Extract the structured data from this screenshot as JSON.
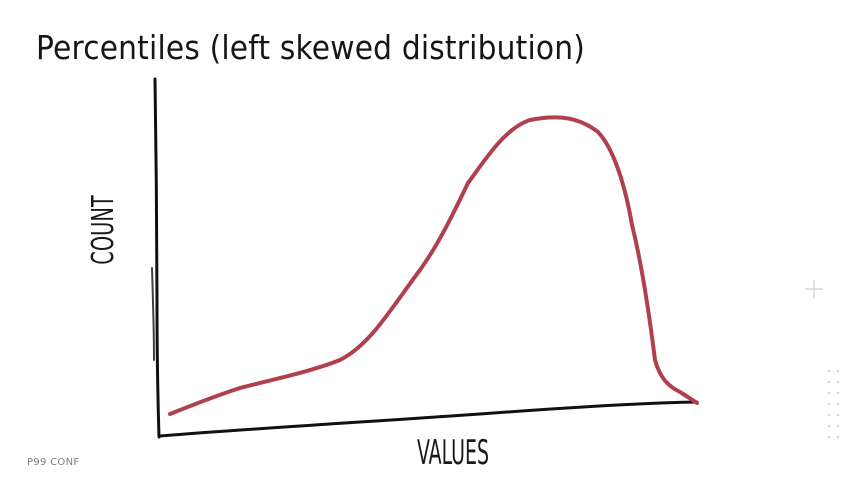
{
  "slide": {
    "title": "Percentiles (left skewed distribution)",
    "footer": "P99 CONF"
  },
  "diagram": {
    "y_axis_label": "COUNT",
    "x_axis_label": "VALUES",
    "curve_color": "#b0404f",
    "axis_color": "#111111",
    "decor": {
      "plus_icon": "plus-icon",
      "dot_grid": "dot-grid-icon"
    }
  }
}
